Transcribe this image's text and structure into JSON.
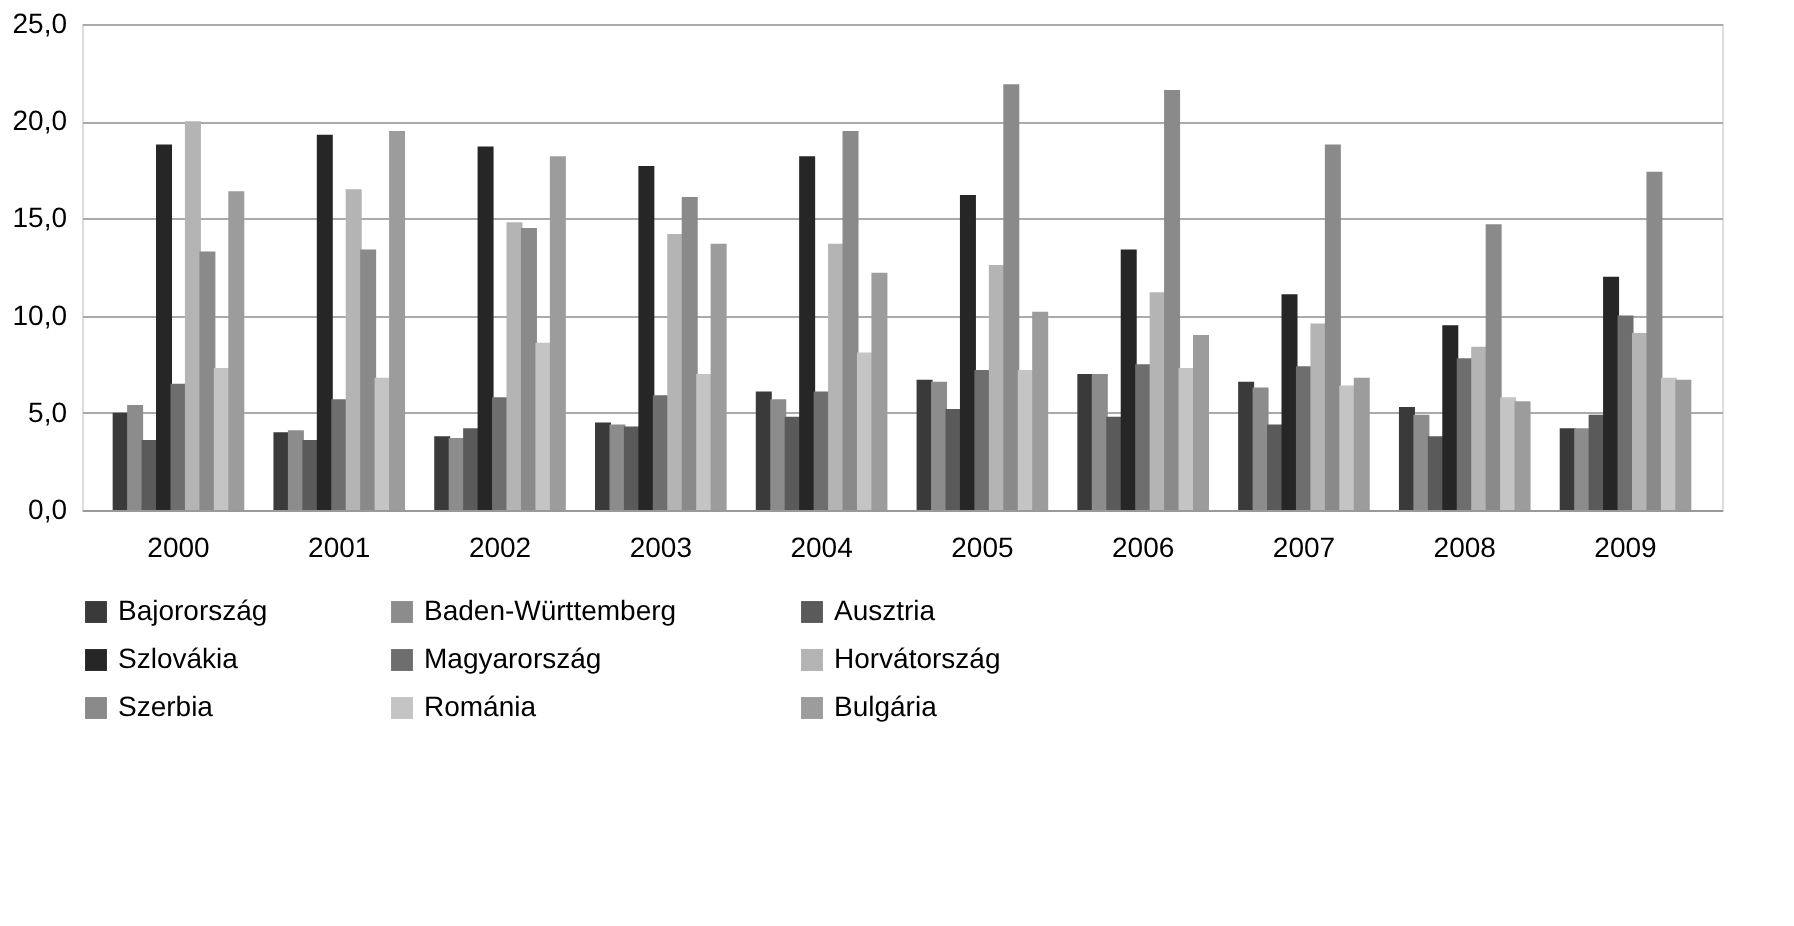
{
  "chart_data": {
    "type": "bar",
    "categories": [
      "2000",
      "2001",
      "2002",
      "2003",
      "2004",
      "2005",
      "2006",
      "2007",
      "2008",
      "2009"
    ],
    "series": [
      {
        "name": "Bajorország",
        "color": "#3a3a3a",
        "values": [
          5.0,
          4.0,
          3.8,
          4.5,
          6.1,
          6.7,
          7.0,
          6.6,
          5.3,
          4.2
        ]
      },
      {
        "name": "Baden-Württemberg",
        "color": "#8c8c8c",
        "values": [
          5.4,
          4.1,
          3.7,
          4.4,
          5.7,
          6.6,
          7.0,
          6.3,
          4.9,
          4.2
        ]
      },
      {
        "name": "Ausztria",
        "color": "#5a5a5a",
        "values": [
          3.6,
          3.6,
          4.2,
          4.3,
          4.8,
          5.2,
          4.8,
          4.4,
          3.8,
          4.9
        ]
      },
      {
        "name": "Szlovákia",
        "color": "#262626",
        "values": [
          18.8,
          19.3,
          18.7,
          17.7,
          18.2,
          16.2,
          13.4,
          11.1,
          9.5,
          12.0
        ]
      },
      {
        "name": "Magyarország",
        "color": "#6e6e6e",
        "values": [
          6.5,
          5.7,
          5.8,
          5.9,
          6.1,
          7.2,
          7.5,
          7.4,
          7.8,
          10.0
        ]
      },
      {
        "name": "Horvátország",
        "color": "#b4b4b4",
        "values": [
          20.0,
          16.5,
          14.8,
          14.2,
          13.7,
          12.6,
          11.2,
          9.6,
          8.4,
          9.1
        ]
      },
      {
        "name": "Szerbia",
        "color": "#8a8a8a",
        "values": [
          13.3,
          13.4,
          14.5,
          16.1,
          19.5,
          21.9,
          21.6,
          18.8,
          14.7,
          17.4
        ]
      },
      {
        "name": "Románia",
        "color": "#c4c4c4",
        "values": [
          7.3,
          6.8,
          8.6,
          7.0,
          8.1,
          7.2,
          7.3,
          6.4,
          5.8,
          6.8
        ]
      },
      {
        "name": "Bulgária",
        "color": "#9c9c9c",
        "values": [
          16.4,
          19.5,
          18.2,
          13.7,
          12.2,
          10.2,
          9.0,
          6.8,
          5.6,
          6.7
        ]
      }
    ],
    "ylim": [
      0,
      25
    ],
    "yticks": [
      {
        "value": 0,
        "label": "0,0"
      },
      {
        "value": 5,
        "label": "5,0"
      },
      {
        "value": 10,
        "label": "10,0"
      },
      {
        "value": 15,
        "label": "15,0"
      },
      {
        "value": 20,
        "label": "20,0"
      },
      {
        "value": 25,
        "label": "25,0"
      }
    ],
    "grid": "y",
    "legend": "bottom"
  }
}
